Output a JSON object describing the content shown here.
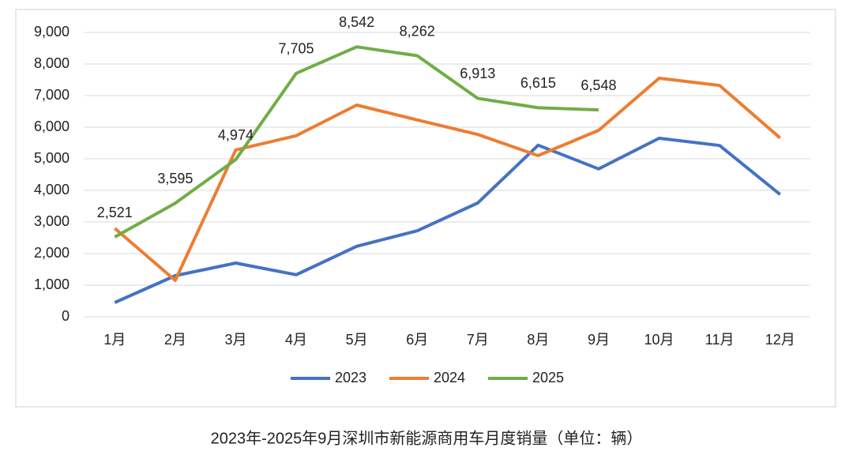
{
  "chart_data": {
    "type": "line",
    "title": "2023年-2025年9月深圳市新能源商用车月度销量（单位：辆）",
    "categories": [
      "1月",
      "2月",
      "3月",
      "4月",
      "5月",
      "6月",
      "7月",
      "8月",
      "9月",
      "10月",
      "11月",
      "12月"
    ],
    "series": [
      {
        "name": "2023",
        "color": "#4472c4",
        "values": [
          450,
          1300,
          1700,
          1330,
          2230,
          2720,
          3600,
          5430,
          4680,
          5650,
          5420,
          3870
        ]
      },
      {
        "name": "2024",
        "color": "#ed7d31",
        "values": [
          2800,
          1150,
          5280,
          5730,
          6700,
          6230,
          5770,
          5100,
          5900,
          7550,
          7320,
          5660
        ]
      },
      {
        "name": "2025",
        "color": "#70ad47",
        "values": [
          2521,
          3595,
          4974,
          7705,
          8542,
          8262,
          6913,
          6615,
          6548,
          null,
          null,
          null
        ],
        "value_labels": [
          "2,521",
          "3,595",
          "4,974",
          "7,705",
          "8,542",
          "8,262",
          "6,913",
          "6,615",
          "6,548",
          null,
          null,
          null
        ]
      }
    ],
    "ylim": [
      0,
      9000
    ],
    "yticks": [
      0,
      {
        "value": 1000,
        "label": "1,000"
      },
      {
        "value": 2000,
        "label": "2,000"
      },
      {
        "value": 3000,
        "label": "3,000"
      },
      {
        "value": 4000,
        "label": "4,000"
      },
      {
        "value": 5000,
        "label": "5,000"
      },
      {
        "value": 6000,
        "label": "6,000"
      },
      {
        "value": 7000,
        "label": "7,000"
      },
      {
        "value": 8000,
        "label": "8,000"
      },
      {
        "value": 9000,
        "label": "9,000"
      }
    ],
    "grid": true,
    "legend": "bottom"
  }
}
